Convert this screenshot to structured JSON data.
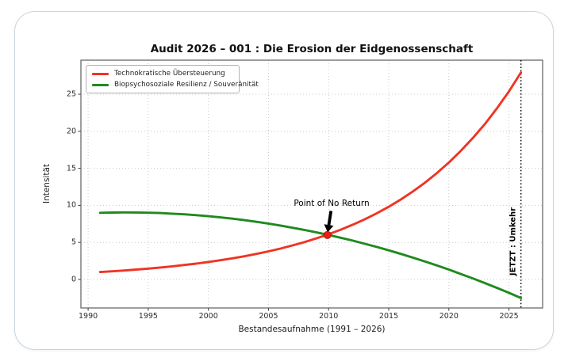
{
  "page": {
    "background": "#ffffff",
    "card_border": "#ccd5de"
  },
  "chart_data": {
    "type": "line",
    "title": "Audit 2026 – 001 : Die Erosion der Eidgenossenschaft",
    "xlabel": "Bestandesaufnahme (1991 – 2026)",
    "ylabel": "Intensität",
    "xlim": [
      1989.4,
      2027.8
    ],
    "ylim": [
      -3.85,
      29.6
    ],
    "x_ticks": [
      1990,
      1995,
      2000,
      2005,
      2010,
      2015,
      2020,
      2025
    ],
    "y_ticks": [
      0,
      5,
      10,
      15,
      20,
      25
    ],
    "grid": "dotted",
    "legend_position": "upper-left",
    "colors": {
      "red_line": "#ef3424",
      "green_line": "#1f8a1f",
      "marker": "#ef1f10",
      "marker_edge": "#9c170a",
      "grid": "#c9c9c9",
      "spine": "#6a6a6a",
      "now_line": "#000000"
    },
    "x": [
      1991,
      1992,
      1993,
      1994,
      1995,
      1996,
      1997,
      1998,
      1999,
      2000,
      2001,
      2002,
      2003,
      2004,
      2005,
      2006,
      2007,
      2008,
      2009,
      2010,
      2011,
      2012,
      2013,
      2014,
      2015,
      2016,
      2017,
      2018,
      2019,
      2020,
      2021,
      2022,
      2023,
      2024,
      2025,
      2026
    ],
    "series": [
      {
        "name": "Technokratische Übersteuerung",
        "color": "#ef3424",
        "values": [
          1.0,
          1.1,
          1.21,
          1.33,
          1.46,
          1.61,
          1.77,
          1.95,
          2.14,
          2.36,
          2.59,
          2.85,
          3.13,
          3.45,
          3.79,
          4.17,
          4.59,
          5.04,
          5.55,
          6.1,
          6.71,
          7.38,
          8.11,
          8.92,
          9.81,
          10.79,
          11.87,
          13.05,
          14.35,
          15.78,
          17.36,
          19.09,
          20.99,
          23.09,
          25.39,
          27.93
        ]
      },
      {
        "name": "Biopsychosoziale Resilienz / Souveränität",
        "color": "#1f8a1f",
        "values": [
          9.0,
          9.03,
          9.05,
          9.04,
          9.01,
          8.96,
          8.88,
          8.79,
          8.67,
          8.54,
          8.38,
          8.2,
          8.0,
          7.78,
          7.54,
          7.27,
          6.98,
          6.68,
          6.35,
          6.0,
          5.63,
          5.24,
          4.82,
          4.39,
          3.93,
          3.45,
          2.95,
          2.43,
          1.89,
          1.33,
          0.74,
          0.14,
          -0.49,
          -1.14,
          -1.81,
          -2.5
        ]
      }
    ],
    "annotations": {
      "point_of_no_return": {
        "label": "Point of No Return",
        "point": [
          2009.9,
          6.0
        ],
        "marker_radius": 4.6,
        "text_pos": [
          2010.25,
          10.3
        ],
        "arrow_tail": [
          2010.2,
          9.25
        ],
        "arrow_tip": [
          2009.92,
          6.35
        ]
      },
      "jetzt_line": {
        "label": "JETZT : Umkehr",
        "x": 2026,
        "label_x": 2025.35,
        "label_y": 5.1
      }
    }
  }
}
